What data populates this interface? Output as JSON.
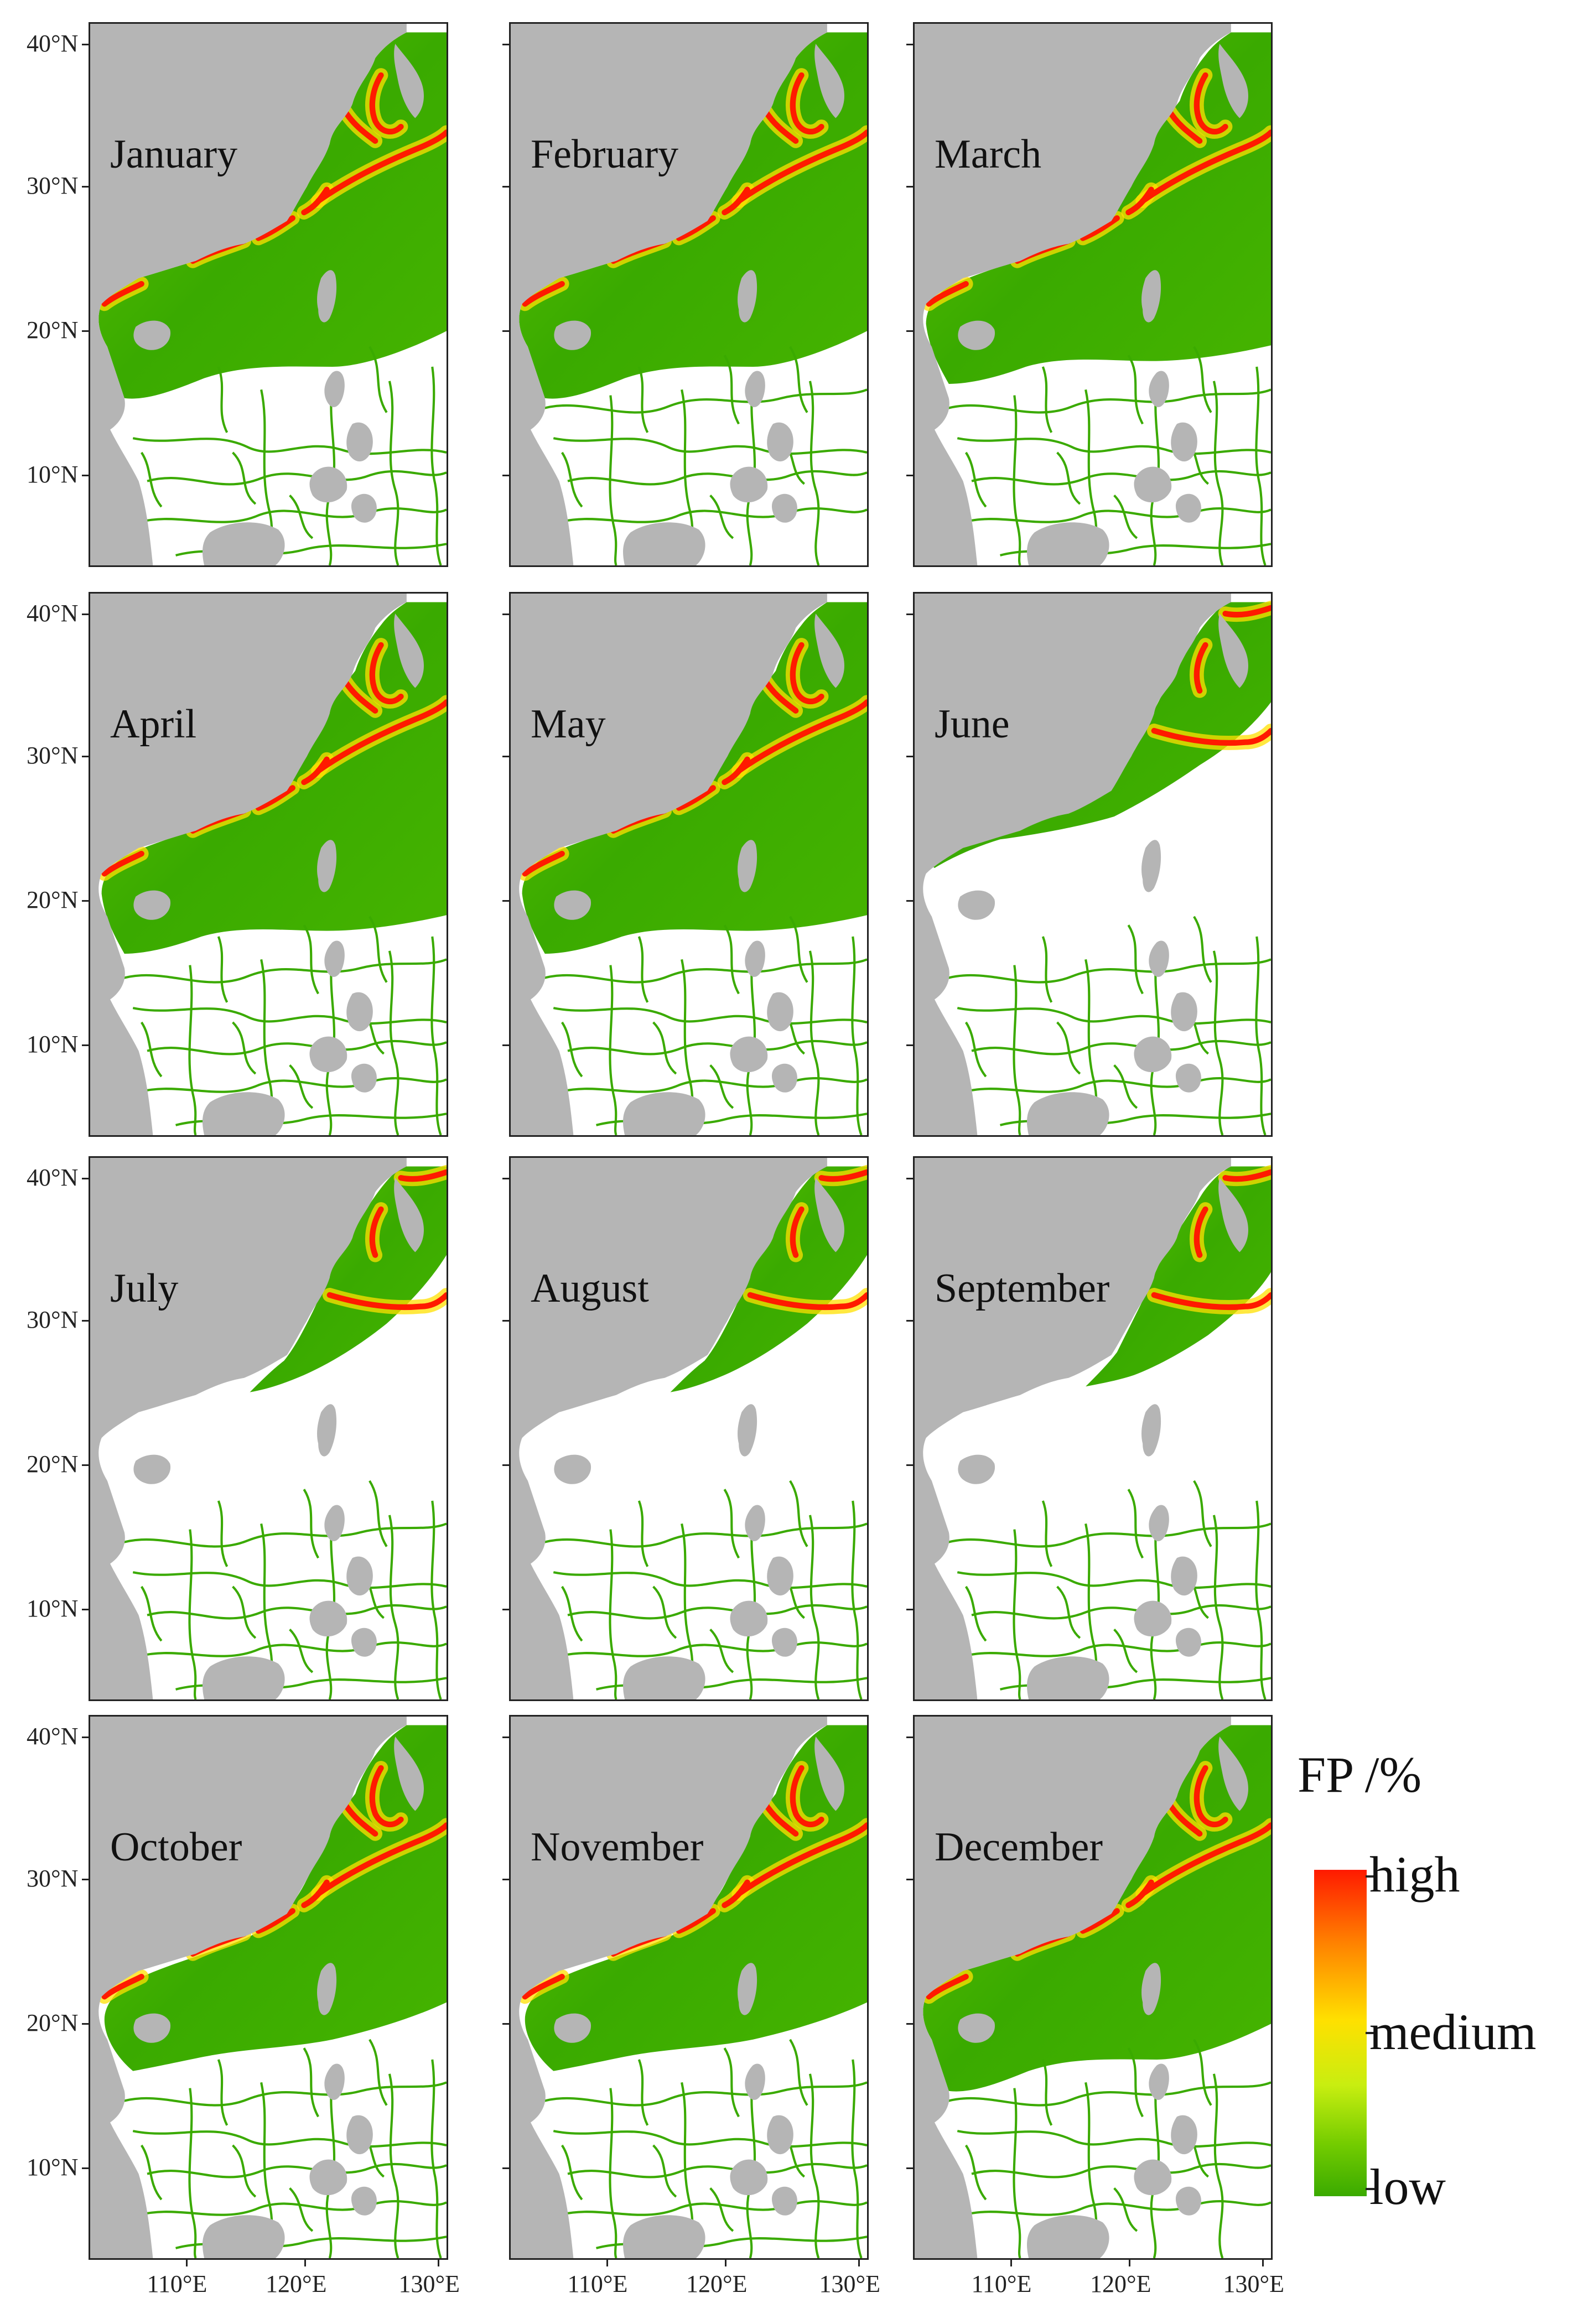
{
  "months": [
    "January",
    "February",
    "March",
    "April",
    "May",
    "June",
    "July",
    "August",
    "September",
    "October",
    "November",
    "December"
  ],
  "lat_labels": [
    "40°N",
    "30°N",
    "20°N",
    "10°N"
  ],
  "lon_labels": [
    "110°E",
    "120°E",
    "130°E"
  ],
  "legend": {
    "title": "FP /%",
    "high": "high",
    "medium": "medium",
    "low": "low"
  },
  "colors": {
    "land": "#b5b5b5",
    "low": "#3aaa00",
    "medium": "#ffe000",
    "high": "#ff1a00",
    "empty": "#ffffff"
  }
}
